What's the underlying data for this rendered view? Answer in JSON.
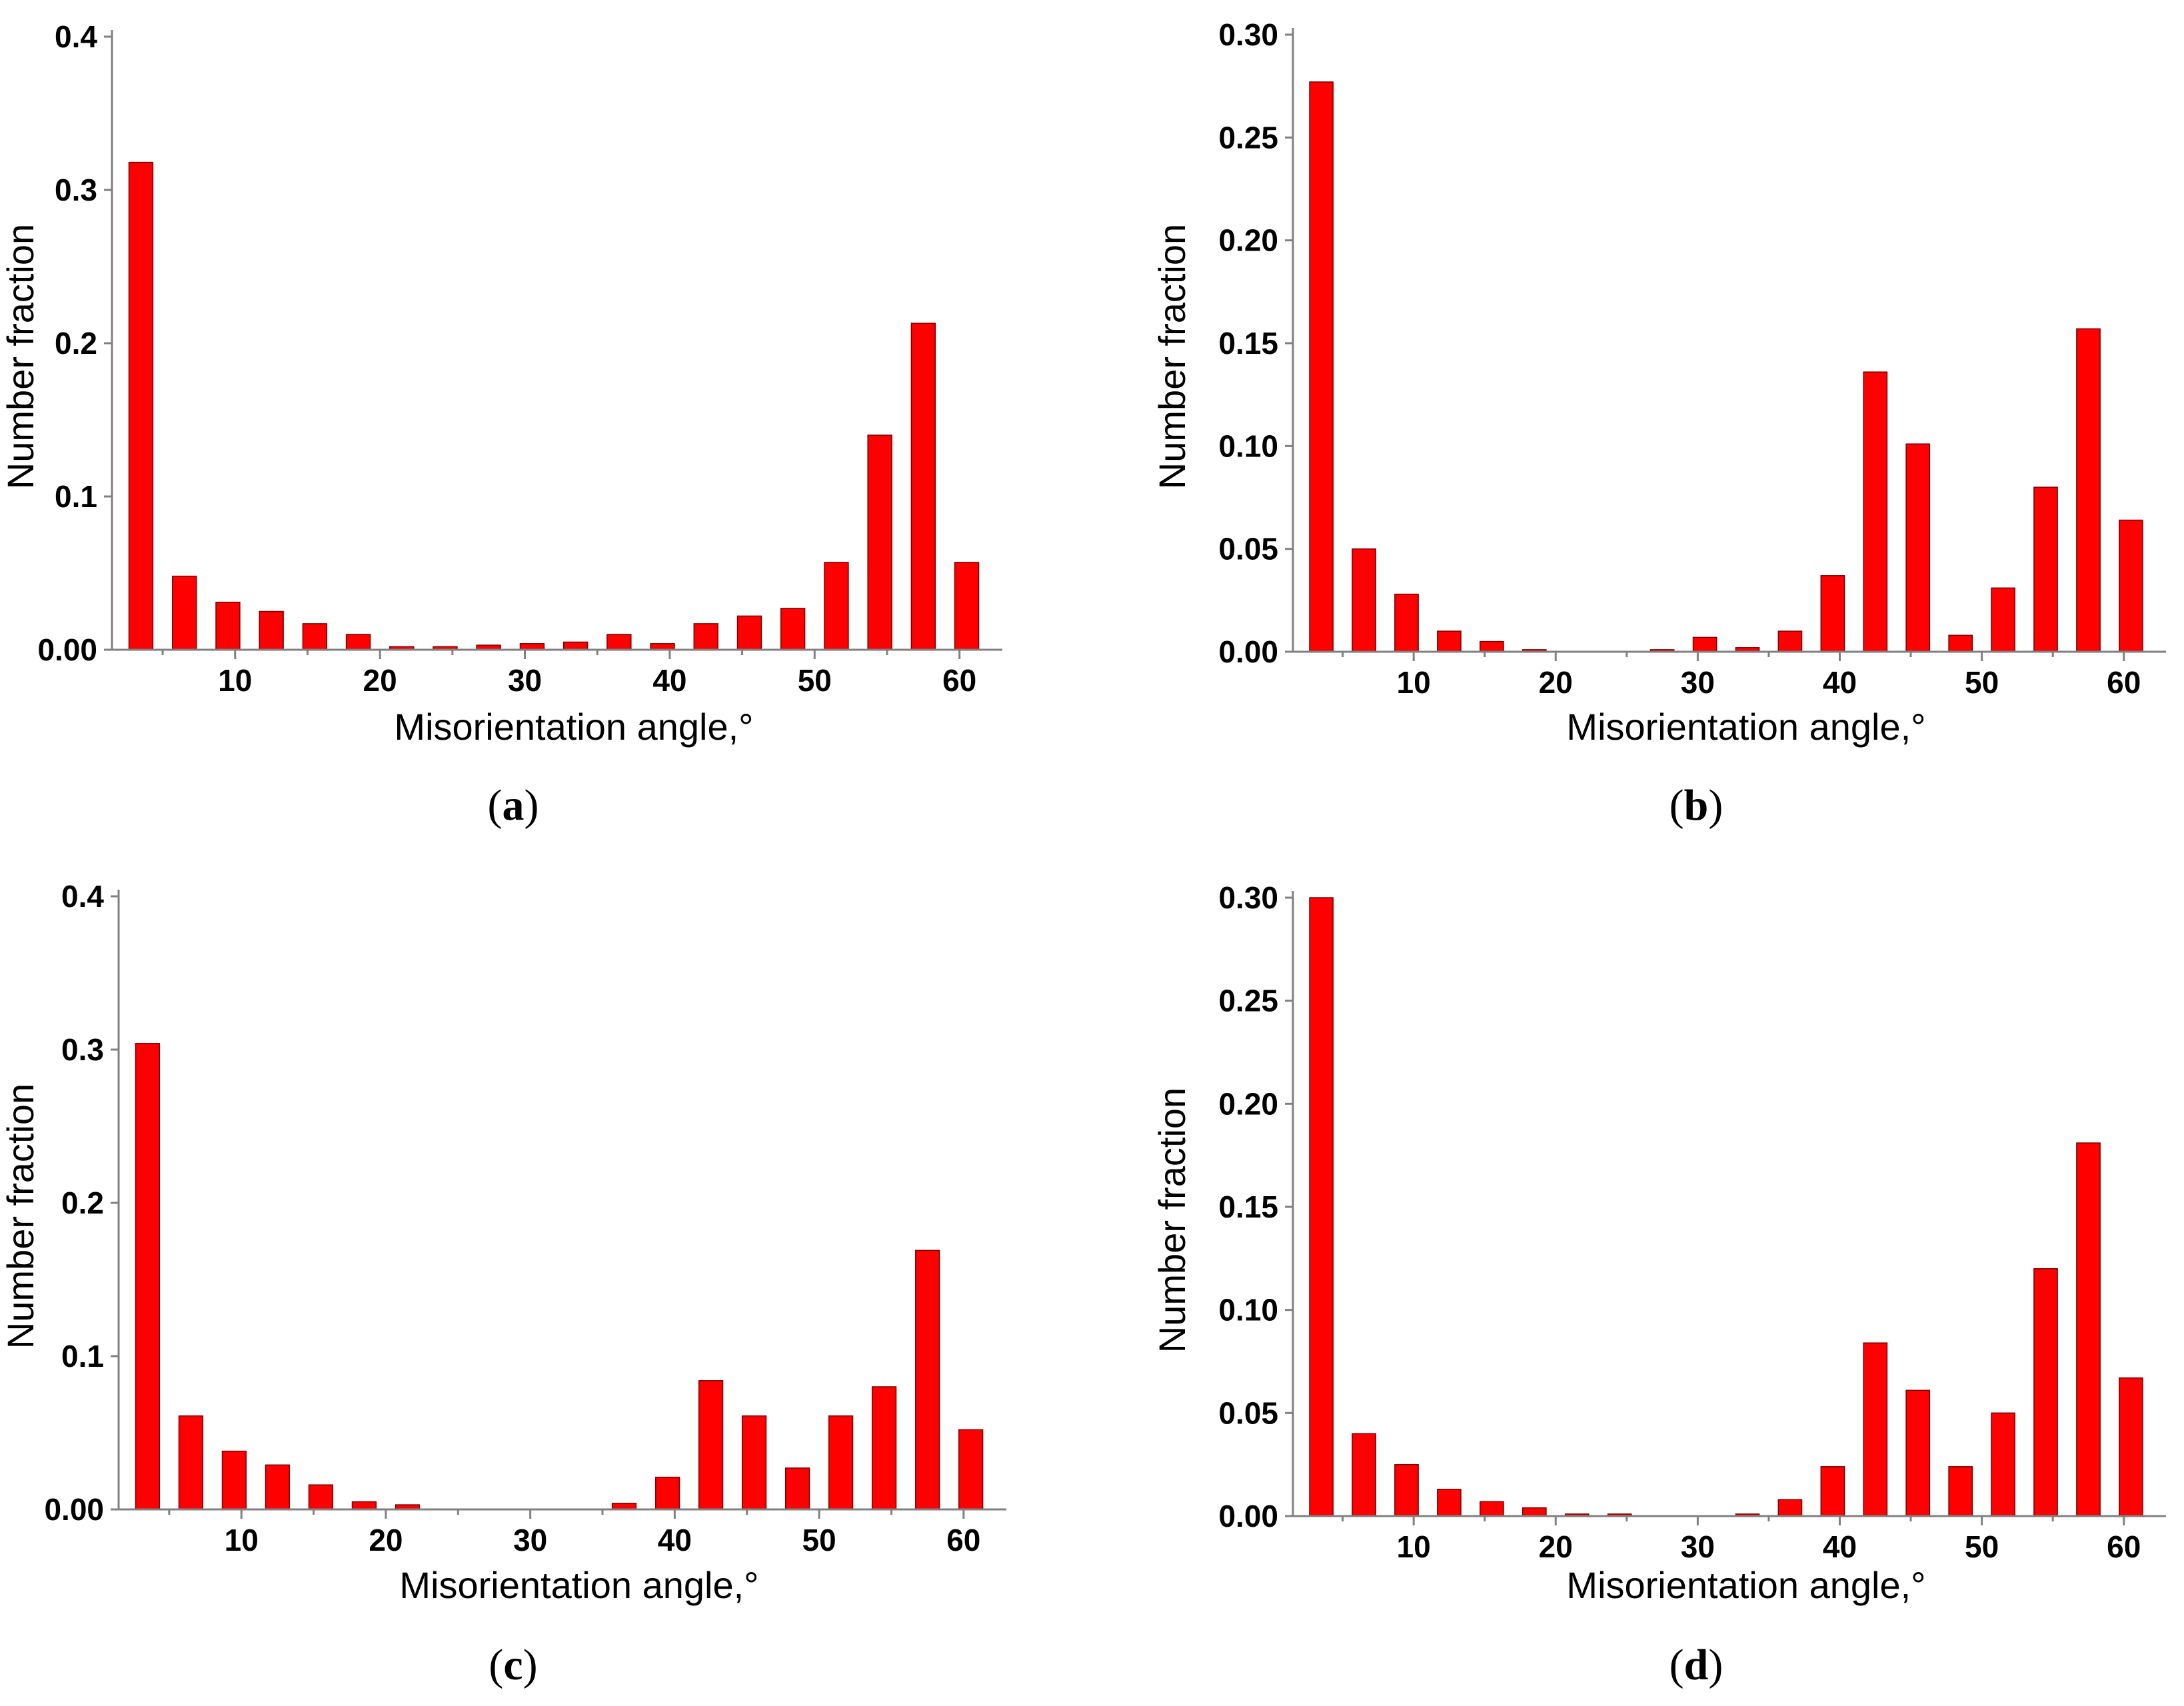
{
  "figure": {
    "panels": [
      {
        "caption_open": "(",
        "caption_letter": "a",
        "caption_close": ")"
      },
      {
        "caption_open": "(",
        "caption_letter": "b",
        "caption_close": ")"
      },
      {
        "caption_open": "(",
        "caption_letter": "c",
        "caption_close": ")"
      },
      {
        "caption_open": "(",
        "caption_letter": "d",
        "caption_close": ")"
      }
    ]
  },
  "colors": {
    "bar": "#ff0000",
    "bar_edge": "#7a0000",
    "axis": "#808080"
  },
  "chart_data": [
    {
      "type": "bar",
      "panel": "a",
      "title": "",
      "xlabel": "Misorientation angle,°",
      "ylabel": "Number fraction",
      "xlim": [
        1.5,
        62.5
      ],
      "ylim": [
        0,
        0.4
      ],
      "xticks": [
        10,
        20,
        30,
        40,
        50,
        60
      ],
      "xtick_labels": [
        "10",
        "20",
        "30",
        "40",
        "50",
        "60"
      ],
      "yticks": [
        0,
        0.1,
        0.2,
        0.3,
        0.4
      ],
      "ytick_labels": [
        "0.00",
        "0.1",
        "0.2",
        "0.3",
        "0.4"
      ],
      "x": [
        3.5,
        6.5,
        9.5,
        12.5,
        15.5,
        18.5,
        21.5,
        24.5,
        27.5,
        30.5,
        33.5,
        36.5,
        39.5,
        42.5,
        45.5,
        48.5,
        51.5,
        54.5,
        57.5,
        60.5
      ],
      "values": [
        0.318,
        0.048,
        0.031,
        0.025,
        0.017,
        0.01,
        0.002,
        0.002,
        0.003,
        0.004,
        0.005,
        0.01,
        0.004,
        0.017,
        0.022,
        0.027,
        0.057,
        0.14,
        0.213,
        0.057
      ],
      "grid": false
    },
    {
      "type": "bar",
      "panel": "b",
      "title": "",
      "xlabel": "Misorientation angle,°",
      "ylabel": "Number fraction",
      "xlim": [
        1.5,
        62.5
      ],
      "ylim": [
        0,
        0.3
      ],
      "xticks": [
        10,
        20,
        30,
        40,
        50,
        60
      ],
      "xtick_labels": [
        "10",
        "20",
        "30",
        "40",
        "50",
        "60"
      ],
      "yticks": [
        0,
        0.05,
        0.1,
        0.15,
        0.2,
        0.25,
        0.3
      ],
      "ytick_labels": [
        "0.00",
        "0.05",
        "0.10",
        "0.15",
        "0.20",
        "0.25",
        "0.30"
      ],
      "x": [
        3.5,
        6.5,
        9.5,
        12.5,
        15.5,
        18.5,
        21.5,
        24.5,
        27.5,
        30.5,
        33.5,
        36.5,
        39.5,
        42.5,
        45.5,
        48.5,
        51.5,
        54.5,
        57.5,
        60.5
      ],
      "values": [
        0.277,
        0.05,
        0.028,
        0.01,
        0.005,
        0.001,
        0,
        0,
        0.001,
        0.007,
        0.002,
        0.01,
        0.037,
        0.136,
        0.101,
        0.008,
        0.031,
        0.08,
        0.157,
        0.064
      ],
      "grid": false
    },
    {
      "type": "bar",
      "panel": "c",
      "title": "",
      "xlabel": "Misorientation angle,°",
      "ylabel": "Number fraction",
      "xlim": [
        1.5,
        62.5
      ],
      "ylim": [
        0,
        0.4
      ],
      "xticks": [
        10,
        20,
        30,
        40,
        50,
        60
      ],
      "xtick_labels": [
        "10",
        "20",
        "30",
        "40",
        "50",
        "60"
      ],
      "yticks": [
        0,
        0.1,
        0.2,
        0.3,
        0.4
      ],
      "ytick_labels": [
        "0.00",
        "0.1",
        "0.2",
        "0.3",
        "0.4"
      ],
      "x": [
        3.5,
        6.5,
        9.5,
        12.5,
        15.5,
        18.5,
        21.5,
        24.5,
        27.5,
        30.5,
        33.5,
        36.5,
        39.5,
        42.5,
        45.5,
        48.5,
        51.5,
        54.5,
        57.5,
        60.5
      ],
      "values": [
        0.304,
        0.061,
        0.038,
        0.029,
        0.016,
        0.005,
        0.003,
        0,
        0,
        0,
        0,
        0.004,
        0.021,
        0.084,
        0.061,
        0.027,
        0.061,
        0.08,
        0.169,
        0.052
      ],
      "grid": false
    },
    {
      "type": "bar",
      "panel": "d",
      "title": "",
      "xlabel": "Misorientation angle,°",
      "ylabel": "Number fraction",
      "xlim": [
        1.5,
        62.5
      ],
      "ylim": [
        0,
        0.3
      ],
      "xticks": [
        10,
        20,
        30,
        40,
        50,
        60
      ],
      "xtick_labels": [
        "10",
        "20",
        "30",
        "40",
        "50",
        "60"
      ],
      "yticks": [
        0,
        0.05,
        0.1,
        0.15,
        0.2,
        0.25,
        0.3
      ],
      "ytick_labels": [
        "0.00",
        "0.05",
        "0.10",
        "0.15",
        "0.20",
        "0.25",
        "0.30"
      ],
      "x": [
        3.5,
        6.5,
        9.5,
        12.5,
        15.5,
        18.5,
        21.5,
        24.5,
        27.5,
        30.5,
        33.5,
        36.5,
        39.5,
        42.5,
        45.5,
        48.5,
        51.5,
        54.5,
        57.5,
        60.5
      ],
      "values": [
        0.3,
        0.04,
        0.025,
        0.013,
        0.007,
        0.004,
        0.001,
        0.001,
        0,
        0,
        0.001,
        0.008,
        0.024,
        0.084,
        0.061,
        0.024,
        0.05,
        0.12,
        0.181,
        0.067
      ],
      "grid": false
    }
  ]
}
